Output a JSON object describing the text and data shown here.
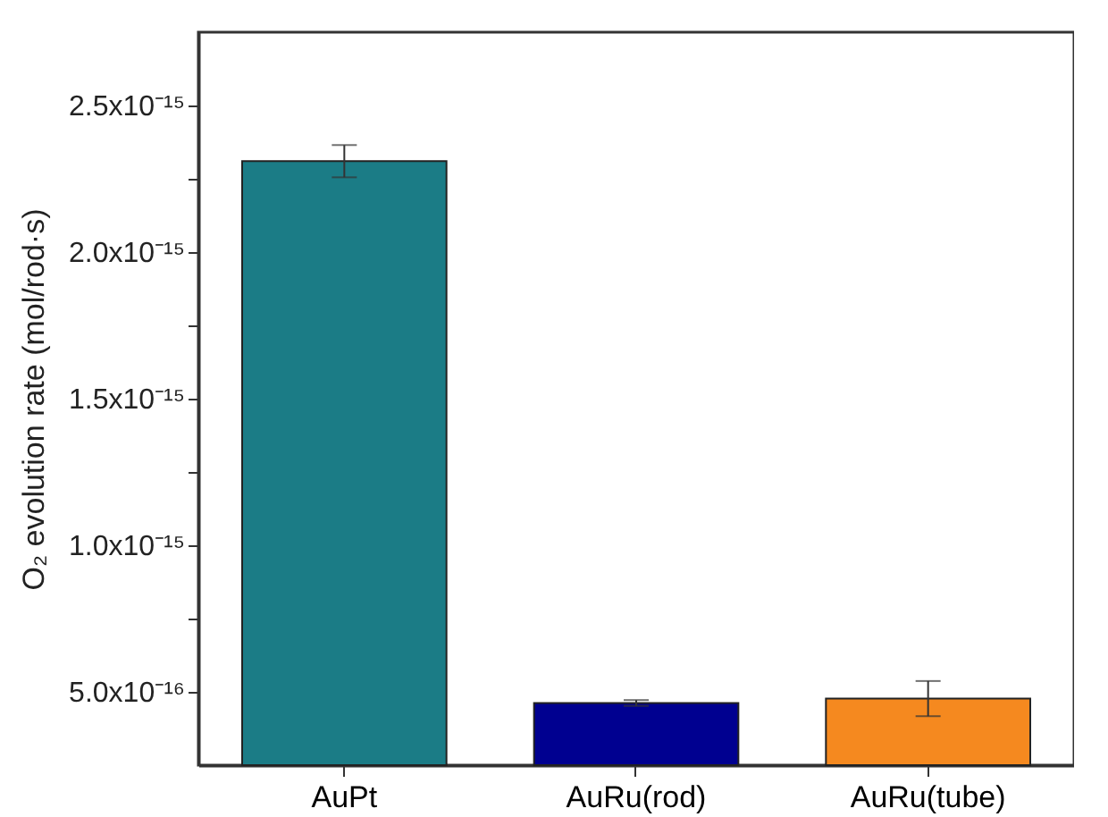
{
  "chart_data": {
    "type": "bar",
    "ylabel": "O₂ evolution rate (mol/rod·s)",
    "categories": [
      "AuPt",
      "AuRu(rod)",
      "AuRu(tube)"
    ],
    "values": [
      2.31e-15,
      4.62e-16,
      4.77e-16
    ],
    "colors": [
      "#1b7c86",
      "#000090",
      "#f5891f"
    ],
    "errors": [
      5.5e-17,
      1e-17,
      6e-17
    ],
    "ylim": [
      2.5e-16,
      2.75e-15
    ],
    "yticks": [
      {
        "value": 5e-16,
        "label": "5.0x10⁻¹⁶"
      },
      {
        "value": 7.5e-16,
        "label": null
      },
      {
        "value": 1e-15,
        "label": "1.0x10⁻¹⁵"
      },
      {
        "value": 1.25e-15,
        "label": null
      },
      {
        "value": 1.5e-15,
        "label": "1.5x10⁻¹⁵"
      },
      {
        "value": 1.75e-15,
        "label": null
      },
      {
        "value": 2e-15,
        "label": "2.0x10⁻¹⁵"
      },
      {
        "value": 2.25e-15,
        "label": null
      },
      {
        "value": 2.5e-15,
        "label": "2.5x10⁻¹⁵"
      }
    ],
    "grid": false,
    "legend": false
  }
}
